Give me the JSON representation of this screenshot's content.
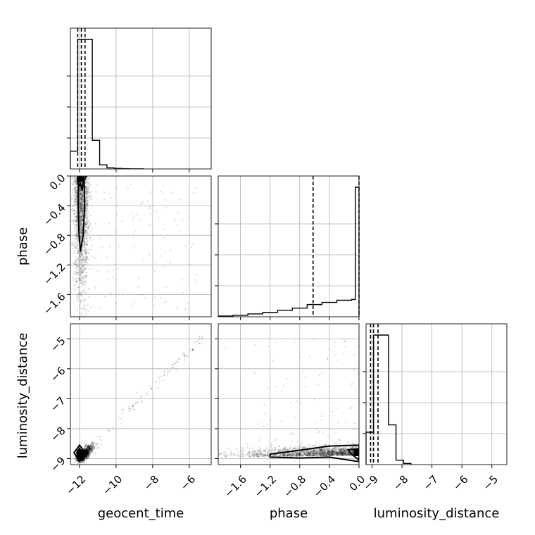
{
  "chart_data": {
    "type": "corner",
    "parameters": [
      "geocent_time",
      "phase",
      "luminosity_distance"
    ],
    "ranges": {
      "geocent_time": [
        -12.5,
        -4.8
      ],
      "phase": [
        -1.9,
        0.0
      ],
      "luminosity_distance": [
        -9.2,
        -4.5
      ]
    },
    "ticks": {
      "geocent_time": [
        -12,
        -10,
        -8,
        -6
      ],
      "phase": [
        -1.6,
        -1.2,
        -0.8,
        -0.4,
        0.0
      ],
      "luminosity_distance": [
        -9,
        -8,
        -7,
        -6,
        -5
      ]
    },
    "tick_labels": {
      "geocent_time": [
        "−12",
        "−10",
        "−8",
        "−6"
      ],
      "phase": [
        "−1.6",
        "−1.2",
        "−0.8",
        "−0.4",
        "0.0"
      ],
      "luminosity_distance": [
        "−9",
        "−8",
        "−7",
        "−6",
        "−5"
      ]
    },
    "quantiles": {
      "geocent_time": [
        -12.1,
        -11.9,
        -11.7
      ],
      "phase": [
        -0.62,
        0.0
      ],
      "luminosity_distance": [
        -9.05,
        -8.95,
        -8.8
      ]
    },
    "histograms": {
      "geocent_time": {
        "bins": [
          -12.5,
          -12.1,
          -11.7,
          -11.3,
          -10.9,
          -10.5,
          -10.1,
          -9.7,
          -9.3,
          -8.9,
          -8.5
        ],
        "values": [
          0.13,
          0.95,
          0.95,
          0.21,
          0.03,
          0.008,
          0.004,
          0.002,
          0.001,
          0.001
        ]
      },
      "phase": {
        "bins": [
          -1.9,
          -1.7,
          -1.5,
          -1.3,
          -1.1,
          -0.9,
          -0.7,
          -0.5,
          -0.3,
          -0.1,
          -0.05,
          0.0
        ],
        "values": [
          0.005,
          0.01,
          0.02,
          0.03,
          0.045,
          0.06,
          0.085,
          0.1,
          0.115,
          0.12,
          0.9
        ]
      },
      "luminosity_distance": {
        "bins": [
          -9.2,
          -8.95,
          -8.7,
          -8.45,
          -8.2,
          -7.95,
          -7.7
        ],
        "values": [
          0.22,
          0.88,
          0.88,
          0.27,
          0.03,
          0.008
        ]
      }
    },
    "grid": true,
    "point_color": "#000000",
    "contour_color": "#000000"
  }
}
